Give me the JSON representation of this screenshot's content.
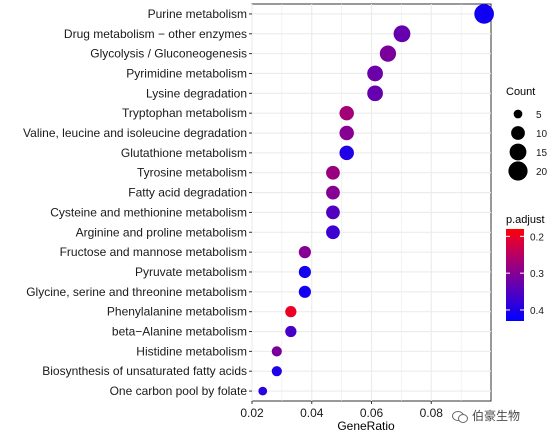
{
  "chart_data": {
    "type": "scatter",
    "xlabel": "GeneRatio",
    "ylabel": "",
    "xlim": [
      0.02,
      0.1
    ],
    "xticks": [
      "0.02",
      "0.04",
      "0.06",
      "0.08"
    ],
    "xtick_values": [
      0.02,
      0.04,
      0.06,
      0.08
    ],
    "grid": true,
    "legend_position": "right",
    "categories": [
      "Purine metabolism",
      "Drug metabolism − other enzymes",
      "Glycolysis / Gluconeogenesis",
      "Pyrimidine metabolism",
      "Lysine degradation",
      "Tryptophan metabolism",
      "Valine, leucine and isoleucine degradation",
      "Glutathione metabolism",
      "Tyrosine metabolism",
      "Fatty acid degradation",
      "Cysteine and methionine metabolism",
      "Arginine and proline metabolism",
      "Fructose and mannose metabolism",
      "Pyruvate metabolism",
      "Glycine, serine and threonine metabolism",
      "Phenylalanine metabolism",
      "beta−Alanine metabolism",
      "Histidine metabolism",
      "Biosynthesis of unsaturated fatty acids",
      "One carbon pool by folate"
    ],
    "gene_ratio": [
      0.0977,
      0.0702,
      0.0655,
      0.0612,
      0.0612,
      0.0517,
      0.0517,
      0.0517,
      0.0471,
      0.0471,
      0.0471,
      0.0471,
      0.0377,
      0.0377,
      0.0377,
      0.033,
      0.033,
      0.0283,
      0.0283,
      0.0236
    ],
    "count": [
      21,
      15,
      14,
      13,
      13,
      11,
      11,
      11,
      10,
      10,
      10,
      10,
      8,
      8,
      8,
      7,
      7,
      6,
      6,
      5
    ],
    "p_adjust": [
      0.415,
      0.33,
      0.31,
      0.325,
      0.33,
      0.27,
      0.3,
      0.4,
      0.28,
      0.3,
      0.35,
      0.37,
      0.3,
      0.41,
      0.41,
      0.2,
      0.36,
      0.31,
      0.4,
      0.39
    ],
    "size_legend": {
      "title": "Count",
      "labels": [
        "5",
        "10",
        "15",
        "20"
      ],
      "values": [
        5,
        10,
        15,
        20
      ]
    },
    "color_legend": {
      "title": "p.adjust",
      "labels": [
        "0.2",
        "0.3",
        "0.4"
      ],
      "values": [
        0.2,
        0.3,
        0.4
      ],
      "range": [
        0.18,
        0.43
      ],
      "low_color": "#FF0000",
      "high_color": "#0000FF"
    },
    "colors": {
      "panel_background": "#FFFFFF",
      "grid_color": "#EBEBEB",
      "axis_text": "#1A1A1A"
    }
  },
  "watermark": {
    "text": "伯豪生物",
    "icon": "wechat-icon"
  }
}
